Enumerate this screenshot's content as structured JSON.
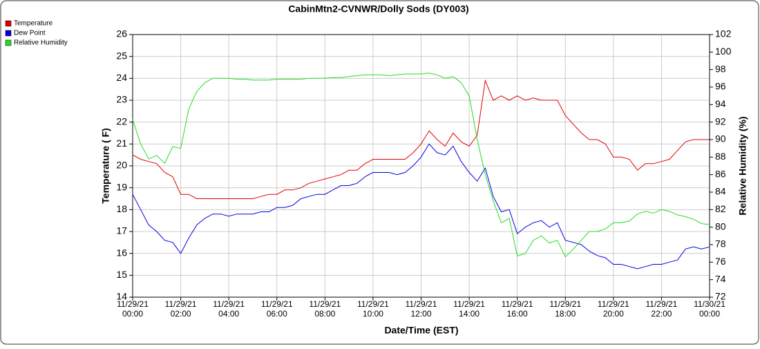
{
  "chart_data": {
    "type": "line",
    "title": "CabinMtn2-CVNWR/Dolly Sods (DY003)",
    "x_label": "Date/Time (EST)",
    "y_label": "Temperature ( F)",
    "y2_label": "Relative Humidity (%)",
    "legend": "top-left",
    "grid": true,
    "x": [
      "11/29/21 00:00",
      "11/29/21 00:20",
      "11/29/21 00:40",
      "11/29/21 01:00",
      "11/29/21 01:20",
      "11/29/21 01:40",
      "11/29/21 02:00",
      "11/29/21 02:20",
      "11/29/21 02:40",
      "11/29/21 03:00",
      "11/29/21 03:20",
      "11/29/21 03:40",
      "11/29/21 04:00",
      "11/29/21 04:20",
      "11/29/21 04:40",
      "11/29/21 05:00",
      "11/29/21 05:20",
      "11/29/21 05:40",
      "11/29/21 06:00",
      "11/29/21 06:20",
      "11/29/21 06:40",
      "11/29/21 07:00",
      "11/29/21 07:20",
      "11/29/21 07:40",
      "11/29/21 08:00",
      "11/29/21 08:20",
      "11/29/21 08:40",
      "11/29/21 09:00",
      "11/29/21 09:20",
      "11/29/21 09:40",
      "11/29/21 10:00",
      "11/29/21 10:20",
      "11/29/21 10:40",
      "11/29/21 11:00",
      "11/29/21 11:20",
      "11/29/21 11:40",
      "11/29/21 12:00",
      "11/29/21 12:20",
      "11/29/21 12:40",
      "11/29/21 13:00",
      "11/29/21 13:20",
      "11/29/21 13:40",
      "11/29/21 14:00",
      "11/29/21 14:20",
      "11/29/21 14:40",
      "11/29/21 15:00",
      "11/29/21 15:20",
      "11/29/21 15:40",
      "11/29/21 16:00",
      "11/29/21 16:20",
      "11/29/21 16:40",
      "11/29/21 17:00",
      "11/29/21 17:20",
      "11/29/21 17:40",
      "11/29/21 18:00",
      "11/29/21 18:20",
      "11/29/21 18:40",
      "11/29/21 19:00",
      "11/29/21 19:20",
      "11/29/21 19:40",
      "11/29/21 20:00",
      "11/29/21 20:20",
      "11/29/21 20:40",
      "11/29/21 21:00",
      "11/29/21 21:20",
      "11/29/21 21:40",
      "11/29/21 22:00",
      "11/29/21 22:20",
      "11/29/21 22:40",
      "11/29/21 23:00",
      "11/29/21 23:20",
      "11/29/21 23:40",
      "11/30/21 00:00"
    ],
    "xlim": [
      "11/29/21 00:00",
      "11/30/21 00:00"
    ],
    "xticks": [
      "11/29/21 00:00",
      "11/29/21 02:00",
      "11/29/21 04:00",
      "11/29/21 06:00",
      "11/29/21 08:00",
      "11/29/21 10:00",
      "11/29/21 12:00",
      "11/29/21 14:00",
      "11/29/21 16:00",
      "11/29/21 18:00",
      "11/29/21 20:00",
      "11/29/21 22:00",
      "11/30/21 00:00"
    ],
    "ylim": [
      14,
      26
    ],
    "yticks": [
      14,
      15,
      16,
      17,
      18,
      19,
      20,
      21,
      22,
      23,
      24,
      25,
      26
    ],
    "y2lim": [
      72,
      102
    ],
    "y2ticks": [
      72,
      74,
      76,
      78,
      80,
      82,
      84,
      86,
      88,
      90,
      92,
      94,
      96,
      98,
      100,
      102
    ],
    "series": [
      {
        "name": "Temperature",
        "color": "#e00000",
        "values": [
          20.5,
          20.3,
          20.2,
          20.1,
          19.7,
          19.5,
          18.7,
          18.7,
          18.5,
          18.5,
          18.5,
          18.5,
          18.5,
          18.5,
          18.5,
          18.5,
          18.6,
          18.7,
          18.7,
          18.9,
          18.9,
          19.0,
          19.2,
          19.3,
          19.4,
          19.5,
          19.6,
          19.8,
          19.8,
          20.1,
          20.3,
          20.3,
          20.3,
          20.3,
          20.3,
          20.6,
          21.0,
          21.6,
          21.2,
          20.9,
          21.5,
          21.1,
          20.9,
          21.4,
          23.9,
          23.0,
          23.2,
          23.0,
          23.2,
          23.0,
          23.1,
          23.0,
          23.0,
          23.0,
          22.3,
          21.9,
          21.5,
          21.2,
          21.2,
          21.0,
          20.4,
          20.4,
          20.3,
          19.8,
          20.1,
          20.1,
          20.2,
          20.3,
          20.7,
          21.1,
          21.2,
          21.2,
          21.2
        ]
      },
      {
        "name": "Dew Point",
        "color": "#0000e0",
        "values": [
          18.7,
          18.0,
          17.3,
          17.0,
          16.6,
          16.5,
          16.0,
          16.7,
          17.3,
          17.6,
          17.8,
          17.8,
          17.7,
          17.8,
          17.8,
          17.8,
          17.9,
          17.9,
          18.1,
          18.1,
          18.2,
          18.5,
          18.6,
          18.7,
          18.7,
          18.9,
          19.1,
          19.1,
          19.2,
          19.5,
          19.7,
          19.7,
          19.7,
          19.6,
          19.7,
          20.0,
          20.4,
          21.0,
          20.6,
          20.5,
          20.9,
          20.2,
          19.7,
          19.3,
          19.9,
          18.6,
          17.9,
          18.0,
          16.9,
          17.2,
          17.4,
          17.5,
          17.2,
          17.4,
          16.6,
          16.5,
          16.4,
          16.1,
          15.9,
          15.8,
          15.5,
          15.5,
          15.4,
          15.3,
          15.4,
          15.5,
          15.5,
          15.6,
          15.7,
          16.2,
          16.3,
          16.2,
          16.3
        ]
      },
      {
        "name": "Relative Humidity",
        "color": "#22dd22",
        "axis": "y2",
        "values": [
          92.3,
          89.5,
          87.8,
          88.2,
          87.3,
          89.2,
          89.0,
          93.5,
          95.5,
          96.5,
          97.0,
          97.0,
          97.0,
          96.9,
          96.9,
          96.8,
          96.8,
          96.8,
          96.9,
          96.9,
          96.9,
          96.9,
          97.0,
          97.0,
          97.0,
          97.1,
          97.1,
          97.2,
          97.3,
          97.4,
          97.4,
          97.4,
          97.3,
          97.4,
          97.5,
          97.5,
          97.5,
          97.6,
          97.4,
          97.0,
          97.2,
          96.5,
          95.0,
          90.0,
          86.0,
          83.0,
          80.5,
          81.0,
          76.7,
          77.0,
          78.5,
          79.0,
          78.2,
          78.5,
          76.6,
          77.5,
          78.5,
          79.5,
          79.5,
          79.8,
          80.5,
          80.5,
          80.7,
          81.5,
          81.8,
          81.6,
          82.0,
          81.8,
          81.4,
          81.2,
          80.9,
          80.4,
          80.3
        ]
      }
    ]
  }
}
